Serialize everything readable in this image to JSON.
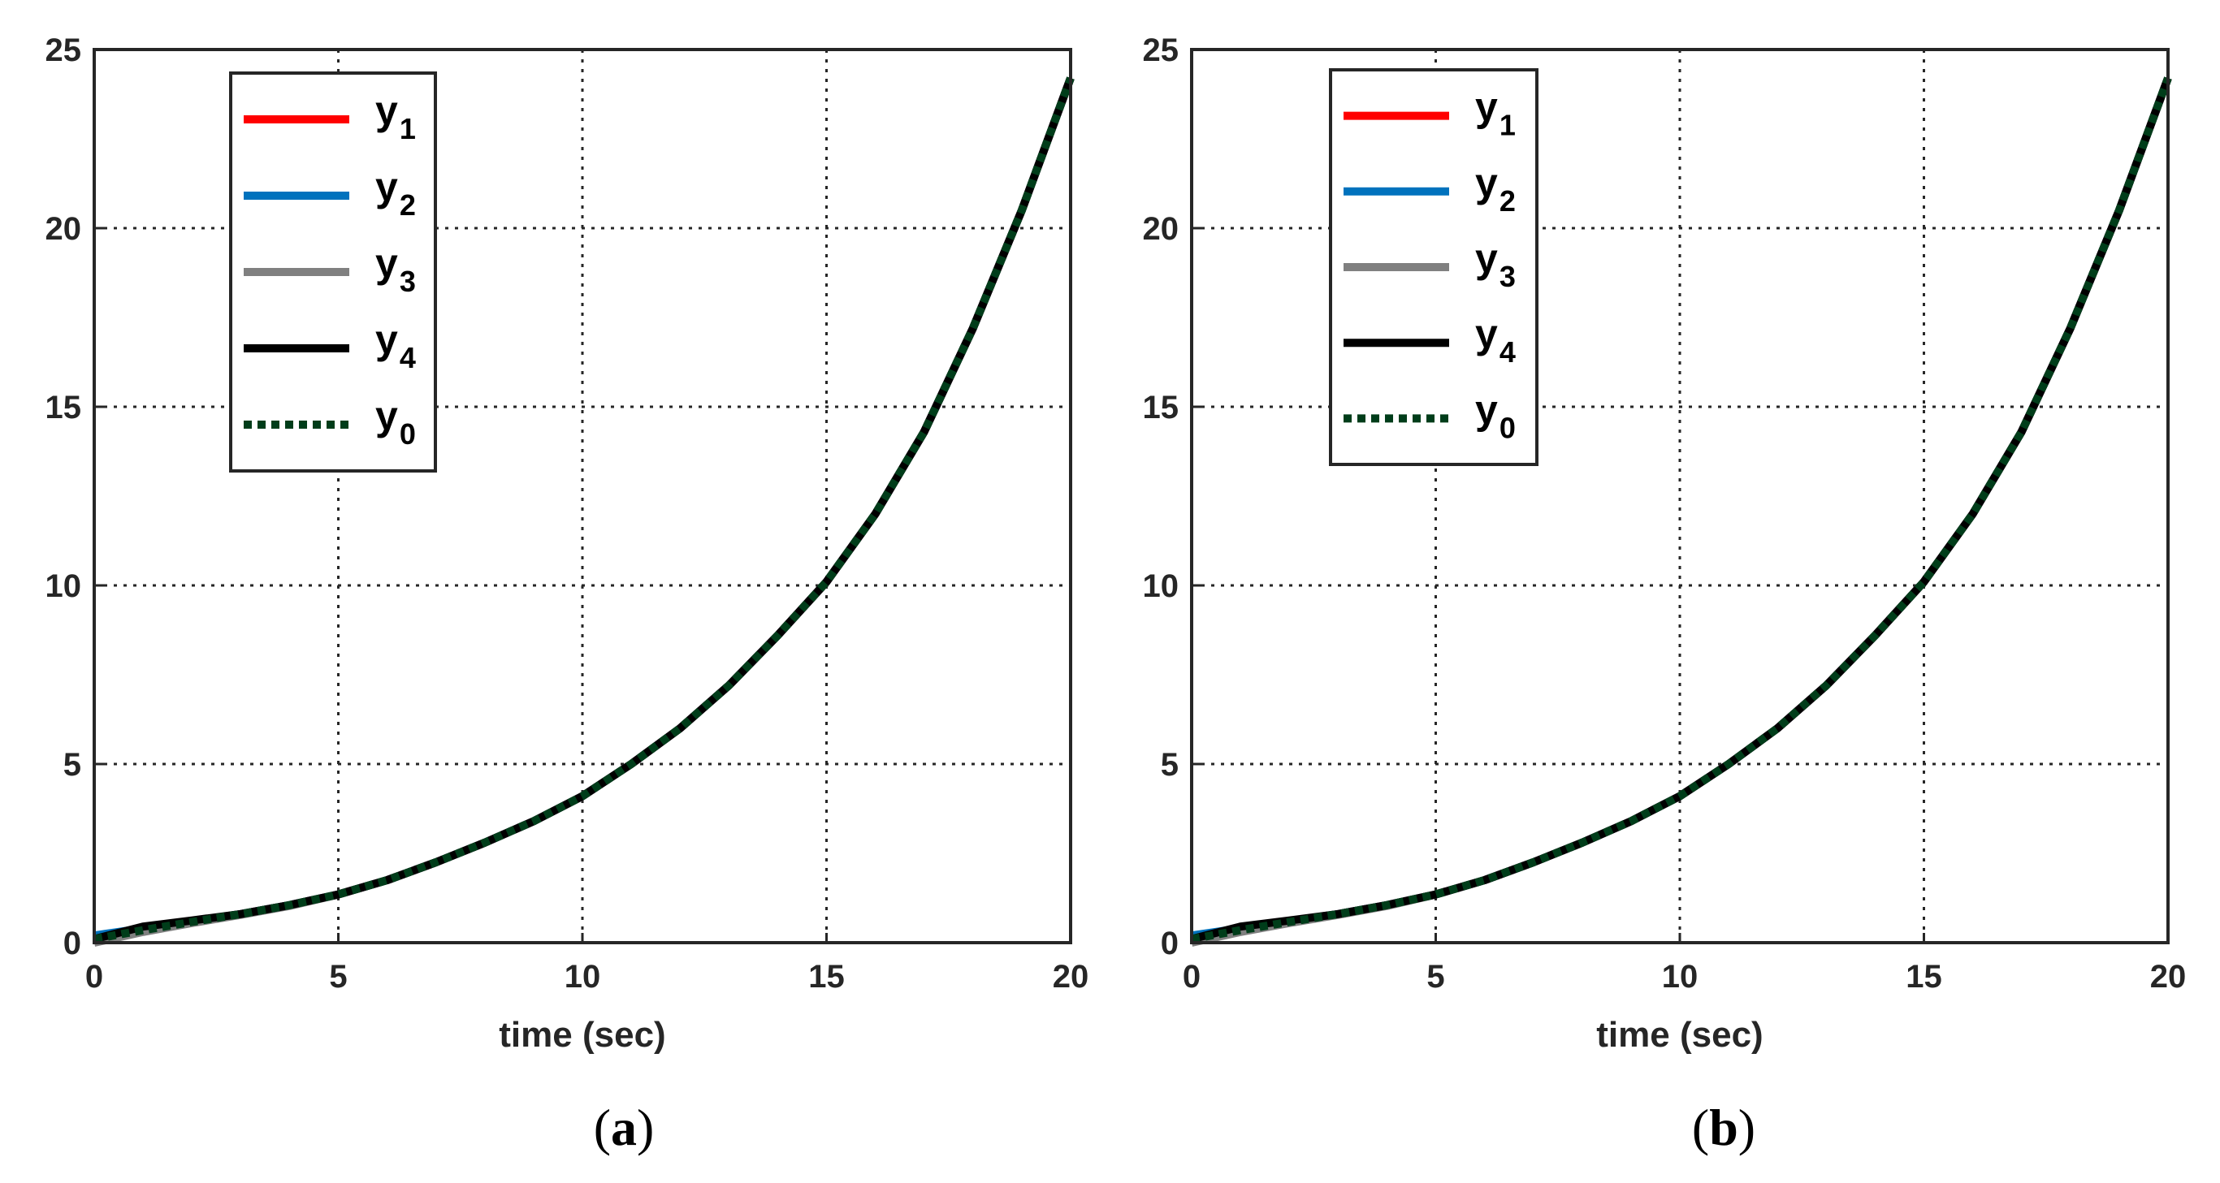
{
  "chart_data": [
    {
      "type": "line",
      "panel_label": "a",
      "xlabel": "time (sec)",
      "ylabel": "",
      "xlim": [
        0,
        20
      ],
      "ylim": [
        0,
        25
      ],
      "xticks": [
        0,
        5,
        10,
        15,
        20
      ],
      "yticks": [
        0,
        5,
        10,
        15,
        20,
        25
      ],
      "grid": true,
      "legend_position": "top-left",
      "x": [
        0,
        1,
        2,
        3,
        4,
        5,
        6,
        7,
        8,
        9,
        10,
        11,
        12,
        13,
        14,
        15,
        16,
        17,
        18,
        19,
        20
      ],
      "series": [
        {
          "name": "y",
          "sub": "1",
          "color": "#ff0000",
          "style": "solid",
          "values": [
            0.05,
            0.4,
            0.6,
            0.8,
            1.05,
            1.35,
            1.75,
            2.25,
            2.8,
            3.4,
            4.1,
            5.0,
            6.0,
            7.2,
            8.6,
            10.1,
            12.0,
            14.3,
            17.2,
            20.5,
            24.2
          ]
        },
        {
          "name": "y",
          "sub": "2",
          "color": "#0072bd",
          "style": "solid",
          "values": [
            0.2,
            0.4,
            0.6,
            0.8,
            1.05,
            1.35,
            1.75,
            2.25,
            2.8,
            3.4,
            4.1,
            5.0,
            6.0,
            7.2,
            8.6,
            10.1,
            12.0,
            14.3,
            17.2,
            20.5,
            24.2
          ]
        },
        {
          "name": "y",
          "sub": "3",
          "color": "#808080",
          "style": "solid",
          "values": [
            0.0,
            0.3,
            0.55,
            0.78,
            1.03,
            1.35,
            1.75,
            2.25,
            2.8,
            3.4,
            4.1,
            5.0,
            6.0,
            7.2,
            8.6,
            10.1,
            12.0,
            14.3,
            17.2,
            20.5,
            24.2
          ]
        },
        {
          "name": "y",
          "sub": "4",
          "color": "#000000",
          "style": "solid",
          "values": [
            0.1,
            0.45,
            0.62,
            0.8,
            1.05,
            1.35,
            1.75,
            2.25,
            2.8,
            3.4,
            4.1,
            5.0,
            6.0,
            7.2,
            8.6,
            10.1,
            12.0,
            14.3,
            17.2,
            20.5,
            24.2
          ]
        },
        {
          "name": "y",
          "sub": "0",
          "color": "#003d1a",
          "style": "dotted",
          "values": [
            0.1,
            0.35,
            0.58,
            0.8,
            1.05,
            1.35,
            1.75,
            2.25,
            2.8,
            3.4,
            4.1,
            5.0,
            6.0,
            7.2,
            8.6,
            10.1,
            12.0,
            14.3,
            17.2,
            20.5,
            24.2
          ]
        }
      ]
    },
    {
      "type": "line",
      "panel_label": "b",
      "xlabel": "time (sec)",
      "ylabel": "",
      "xlim": [
        0,
        20
      ],
      "ylim": [
        0,
        25
      ],
      "xticks": [
        0,
        5,
        10,
        15,
        20
      ],
      "yticks": [
        0,
        5,
        10,
        15,
        20,
        25
      ],
      "grid": true,
      "legend_position": "top-left",
      "x": [
        0,
        1,
        2,
        3,
        4,
        5,
        6,
        7,
        8,
        9,
        10,
        11,
        12,
        13,
        14,
        15,
        16,
        17,
        18,
        19,
        20
      ],
      "series": [
        {
          "name": "y",
          "sub": "1",
          "color": "#ff0000",
          "style": "solid",
          "values": [
            0.05,
            0.4,
            0.6,
            0.8,
            1.05,
            1.35,
            1.75,
            2.25,
            2.8,
            3.4,
            4.1,
            5.0,
            6.0,
            7.2,
            8.6,
            10.1,
            12.0,
            14.3,
            17.2,
            20.5,
            24.2
          ]
        },
        {
          "name": "y",
          "sub": "2",
          "color": "#0072bd",
          "style": "solid",
          "values": [
            0.2,
            0.4,
            0.6,
            0.8,
            1.05,
            1.35,
            1.75,
            2.25,
            2.8,
            3.4,
            4.1,
            5.0,
            6.0,
            7.2,
            8.6,
            10.1,
            12.0,
            14.3,
            17.2,
            20.5,
            24.2
          ]
        },
        {
          "name": "y",
          "sub": "3",
          "color": "#808080",
          "style": "solid",
          "values": [
            0.0,
            0.3,
            0.55,
            0.78,
            1.03,
            1.35,
            1.75,
            2.25,
            2.8,
            3.4,
            4.1,
            5.0,
            6.0,
            7.2,
            8.6,
            10.1,
            12.0,
            14.3,
            17.2,
            20.5,
            24.2
          ]
        },
        {
          "name": "y",
          "sub": "4",
          "color": "#000000",
          "style": "solid",
          "values": [
            0.1,
            0.45,
            0.62,
            0.8,
            1.05,
            1.35,
            1.75,
            2.25,
            2.8,
            3.4,
            4.1,
            5.0,
            6.0,
            7.2,
            8.6,
            10.1,
            12.0,
            14.3,
            17.2,
            20.5,
            24.2
          ]
        },
        {
          "name": "y",
          "sub": "0",
          "color": "#003d1a",
          "style": "dotted",
          "values": [
            0.1,
            0.35,
            0.58,
            0.8,
            1.05,
            1.35,
            1.75,
            2.25,
            2.8,
            3.4,
            4.1,
            5.0,
            6.0,
            7.2,
            8.6,
            10.1,
            12.0,
            14.3,
            17.2,
            20.5,
            24.2
          ]
        }
      ]
    }
  ]
}
